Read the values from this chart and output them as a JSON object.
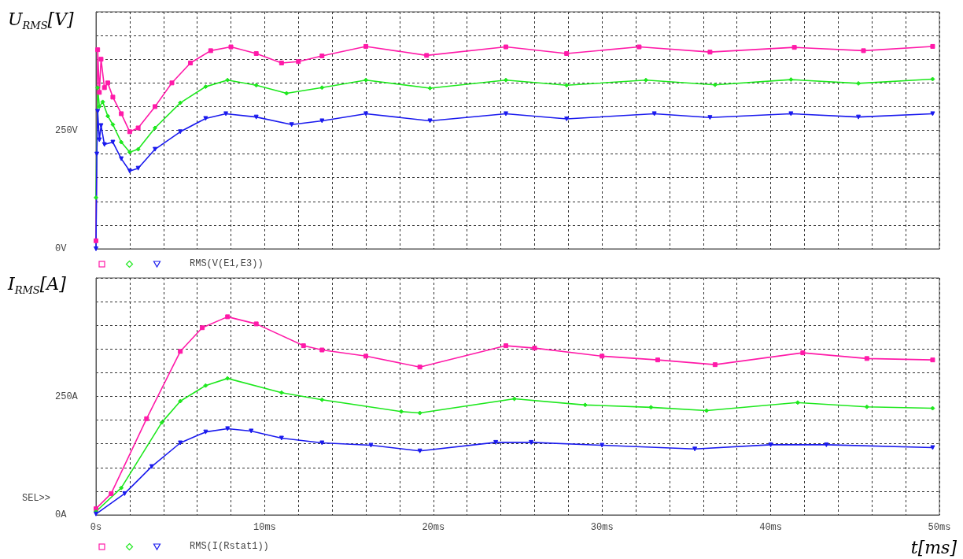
{
  "chart_data": [
    {
      "type": "line",
      "ylabel": "U$_{RMS}$[V]",
      "annotations": [
        "RMS(V(E1,E3))"
      ],
      "grid": true,
      "tick_labels": "y",
      "line_style": "solid",
      "xlim": [
        0,
        50
      ],
      "ylim": [
        0,
        500
      ],
      "xticks": [
        {
          "value": 0,
          "label": null
        },
        {
          "value": 2,
          "label": null
        },
        {
          "value": 4,
          "label": null
        },
        {
          "value": 6,
          "label": null
        },
        {
          "value": 8,
          "label": null
        },
        {
          "value": 10,
          "label": null
        },
        {
          "value": 12,
          "label": null
        },
        {
          "value": 14,
          "label": null
        },
        {
          "value": 16,
          "label": null
        },
        {
          "value": 18,
          "label": null
        },
        {
          "value": 20,
          "label": null
        },
        {
          "value": 22,
          "label": null
        },
        {
          "value": 24,
          "label": null
        },
        {
          "value": 26,
          "label": null
        },
        {
          "value": 28,
          "label": null
        },
        {
          "value": 30,
          "label": null
        },
        {
          "value": 32,
          "label": null
        },
        {
          "value": 34,
          "label": null
        },
        {
          "value": 36,
          "label": null
        },
        {
          "value": 38,
          "label": null
        },
        {
          "value": 40,
          "label": null
        },
        {
          "value": 42,
          "label": null
        },
        {
          "value": 44,
          "label": null
        },
        {
          "value": 46,
          "label": null
        },
        {
          "value": 48,
          "label": null
        },
        {
          "value": 50,
          "label": null
        }
      ],
      "yticks": [
        {
          "value": 0,
          "label": "0V"
        },
        {
          "value": 50,
          "label": null
        },
        {
          "value": 100,
          "label": null
        },
        {
          "value": 150,
          "label": null
        },
        {
          "value": 200,
          "label": null
        },
        {
          "value": 250,
          "label": "250V"
        },
        {
          "value": 300,
          "label": null
        },
        {
          "value": 350,
          "label": null
        },
        {
          "value": 400,
          "label": null
        },
        {
          "value": 450,
          "label": null
        },
        {
          "value": 500,
          "label": null
        }
      ],
      "series": [
        {
          "color": "#ff1aa8",
          "marker": "square",
          "x": [
            0,
            0.1,
            0.2,
            0.3,
            0.5,
            0.7,
            1.0,
            1.5,
            2.0,
            2.5,
            3.5,
            4.5,
            5.6,
            6.8,
            8.0,
            9.5,
            11,
            12,
            13.4,
            16.0,
            19.6,
            24.3,
            27.9,
            32.2,
            36.4,
            41.4,
            45.5,
            49.6
          ],
          "values": [
            17,
            420,
            330,
            400,
            340,
            350,
            320,
            285,
            247,
            255,
            300,
            350,
            392,
            418,
            426,
            412,
            392,
            395,
            407,
            427,
            408,
            426,
            412,
            426,
            415,
            425,
            418,
            427
          ]
        },
        {
          "color": "#1ee81e",
          "marker": "diamond",
          "x": [
            0,
            0.1,
            0.2,
            0.4,
            0.7,
            1.0,
            1.5,
            2.0,
            2.5,
            3.5,
            5.0,
            6.5,
            7.8,
            9.5,
            11.3,
            13.4,
            16.0,
            19.8,
            24.3,
            27.9,
            32.6,
            36.7,
            41.2,
            45.2,
            49.6
          ],
          "values": [
            108,
            340,
            300,
            310,
            280,
            262,
            225,
            204,
            210,
            255,
            308,
            342,
            356,
            345,
            328,
            340,
            356,
            339,
            356,
            345,
            356,
            346,
            357,
            349,
            358
          ]
        },
        {
          "color": "#1a1aee",
          "marker": "triangle",
          "x": [
            0,
            0.05,
            0.1,
            0.2,
            0.3,
            0.5,
            1.0,
            1.5,
            2.0,
            2.5,
            3.5,
            5.0,
            6.5,
            7.7,
            9.5,
            11.6,
            13.4,
            16.0,
            19.8,
            24.3,
            27.9,
            33.1,
            36.4,
            41.2,
            45.2,
            49.6
          ],
          "values": [
            0,
            200,
            290,
            230,
            260,
            220,
            225,
            190,
            164,
            170,
            210,
            247,
            275,
            285,
            278,
            262,
            270,
            285,
            270,
            285,
            274,
            285,
            277,
            285,
            278,
            285
          ]
        }
      ]
    },
    {
      "type": "line",
      "ylabel": "I$_{RMS}$[A]",
      "xlabel": "t[ms]",
      "grid": true,
      "line_style": "solid",
      "annotations": [
        "SEL>>",
        "RMS(I(Rstat1))"
      ],
      "xlim": [
        0,
        50
      ],
      "ylim": [
        0,
        500
      ],
      "xticks": [
        {
          "value": 0,
          "label": "0s"
        },
        {
          "value": 2,
          "label": null
        },
        {
          "value": 4,
          "label": null
        },
        {
          "value": 6,
          "label": null
        },
        {
          "value": 8,
          "label": null
        },
        {
          "value": 10,
          "label": "10ms"
        },
        {
          "value": 12,
          "label": null
        },
        {
          "value": 14,
          "label": null
        },
        {
          "value": 16,
          "label": null
        },
        {
          "value": 18,
          "label": null
        },
        {
          "value": 20,
          "label": "20ms"
        },
        {
          "value": 22,
          "label": null
        },
        {
          "value": 24,
          "label": null
        },
        {
          "value": 26,
          "label": null
        },
        {
          "value": 28,
          "label": null
        },
        {
          "value": 30,
          "label": "30ms"
        },
        {
          "value": 32,
          "label": null
        },
        {
          "value": 34,
          "label": null
        },
        {
          "value": 36,
          "label": null
        },
        {
          "value": 38,
          "label": null
        },
        {
          "value": 40,
          "label": "40ms"
        },
        {
          "value": 42,
          "label": null
        },
        {
          "value": 44,
          "label": null
        },
        {
          "value": 46,
          "label": null
        },
        {
          "value": 48,
          "label": null
        },
        {
          "value": 50,
          "label": "50ms"
        }
      ],
      "yticks": [
        {
          "value": 0,
          "label": "0A"
        },
        {
          "value": 50,
          "label": null
        },
        {
          "value": 100,
          "label": null
        },
        {
          "value": 150,
          "label": null
        },
        {
          "value": 200,
          "label": null
        },
        {
          "value": 250,
          "label": "250A"
        },
        {
          "value": 300,
          "label": null
        },
        {
          "value": 350,
          "label": null
        },
        {
          "value": 400,
          "label": null
        },
        {
          "value": 450,
          "label": null
        },
        {
          "value": 500,
          "label": null
        }
      ],
      "series": [
        {
          "color": "#ff1aa8",
          "marker": "square",
          "x": [
            0,
            0.9,
            3.0,
            5.0,
            6.3,
            7.8,
            9.5,
            12.3,
            13.4,
            16.0,
            19.2,
            24.3,
            26.0,
            30.0,
            33.3,
            36.7,
            41.9,
            45.7,
            49.6
          ],
          "values": [
            13,
            45,
            203,
            345,
            395,
            418,
            403,
            357,
            348,
            335,
            312,
            357,
            352,
            335,
            327,
            317,
            342,
            330,
            327
          ]
        },
        {
          "color": "#1ee81e",
          "marker": "diamond",
          "x": [
            0,
            1.5,
            3.9,
            5.0,
            6.5,
            7.8,
            11.0,
            13.4,
            18.1,
            19.2,
            24.8,
            29.0,
            32.9,
            36.2,
            41.6,
            45.7,
            49.6
          ],
          "values": [
            7,
            57,
            195,
            240,
            273,
            288,
            258,
            243,
            218,
            215,
            245,
            232,
            227,
            220,
            237,
            228,
            225
          ]
        },
        {
          "color": "#1a1aee",
          "marker": "triangle",
          "x": [
            0,
            1.7,
            3.3,
            5.0,
            6.5,
            7.8,
            9.2,
            11.0,
            13.4,
            16.3,
            19.2,
            23.7,
            25.8,
            30.0,
            35.5,
            40.0,
            43.3,
            49.6
          ],
          "values": [
            2,
            45,
            102,
            152,
            175,
            182,
            177,
            162,
            152,
            147,
            135,
            153,
            153,
            147,
            139,
            148,
            148,
            142
          ]
        }
      ]
    }
  ]
}
